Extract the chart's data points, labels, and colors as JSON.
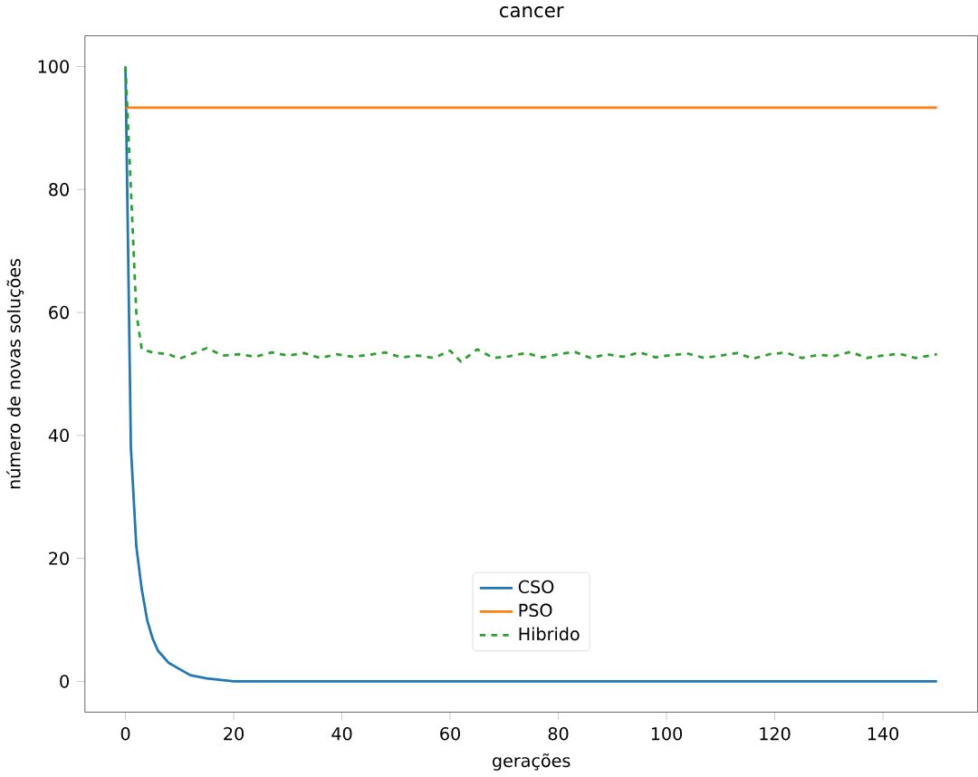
{
  "chart_data": {
    "type": "line",
    "title": "cancer",
    "xlabel": "gerações",
    "ylabel": "número de novas soluções",
    "xlim": [
      -7.5,
      157.5
    ],
    "ylim": [
      -5,
      105
    ],
    "xticks": [
      0,
      20,
      40,
      60,
      80,
      100,
      120,
      140
    ],
    "yticks": [
      0,
      20,
      40,
      60,
      80,
      100
    ],
    "grid": false,
    "legend": "bottom",
    "series": [
      {
        "name": "CSO",
        "color": "#1f77b4",
        "line_style": "solid",
        "x": [
          0,
          1,
          2,
          3,
          4,
          5,
          6,
          7,
          8,
          10,
          12,
          15,
          20,
          150
        ],
        "values": [
          100,
          38,
          22,
          15,
          10,
          7,
          5,
          4,
          3,
          2,
          1,
          0.5,
          0,
          0
        ]
      },
      {
        "name": "PSO",
        "color": "#ff7f0e",
        "line_style": "solid",
        "x": [
          0,
          150
        ],
        "values": [
          93.3,
          93.3
        ]
      },
      {
        "name": "Hibrido",
        "color": "#2ca02c",
        "line_style": "dashed",
        "x": [
          0,
          1,
          2,
          3,
          5,
          8,
          10,
          13,
          15,
          18,
          21,
          24,
          27,
          30,
          33,
          36,
          39,
          42,
          45,
          48,
          51,
          54,
          57,
          60,
          62,
          65,
          68,
          71,
          74,
          77,
          80,
          83,
          86,
          89,
          92,
          95,
          98,
          101,
          104,
          107,
          110,
          113,
          116,
          119,
          122,
          125,
          128,
          131,
          134,
          137,
          140,
          143,
          146,
          150
        ],
        "values": [
          100,
          80,
          60,
          54,
          53.5,
          53.2,
          52.5,
          53.5,
          54.2,
          53,
          53.2,
          52.8,
          53.5,
          53,
          53.4,
          52.6,
          53.2,
          52.8,
          53.1,
          53.5,
          52.7,
          53,
          52.6,
          53.8,
          52,
          54,
          52.6,
          52.9,
          53.4,
          52.7,
          53.2,
          53.6,
          52.6,
          53.2,
          52.8,
          53.5,
          52.7,
          53.1,
          53.3,
          52.6,
          53,
          53.4,
          52.5,
          53.2,
          53.5,
          52.6,
          53.1,
          52.9,
          53.6,
          52.6,
          53,
          53.3,
          52.6,
          53.2
        ]
      }
    ]
  }
}
